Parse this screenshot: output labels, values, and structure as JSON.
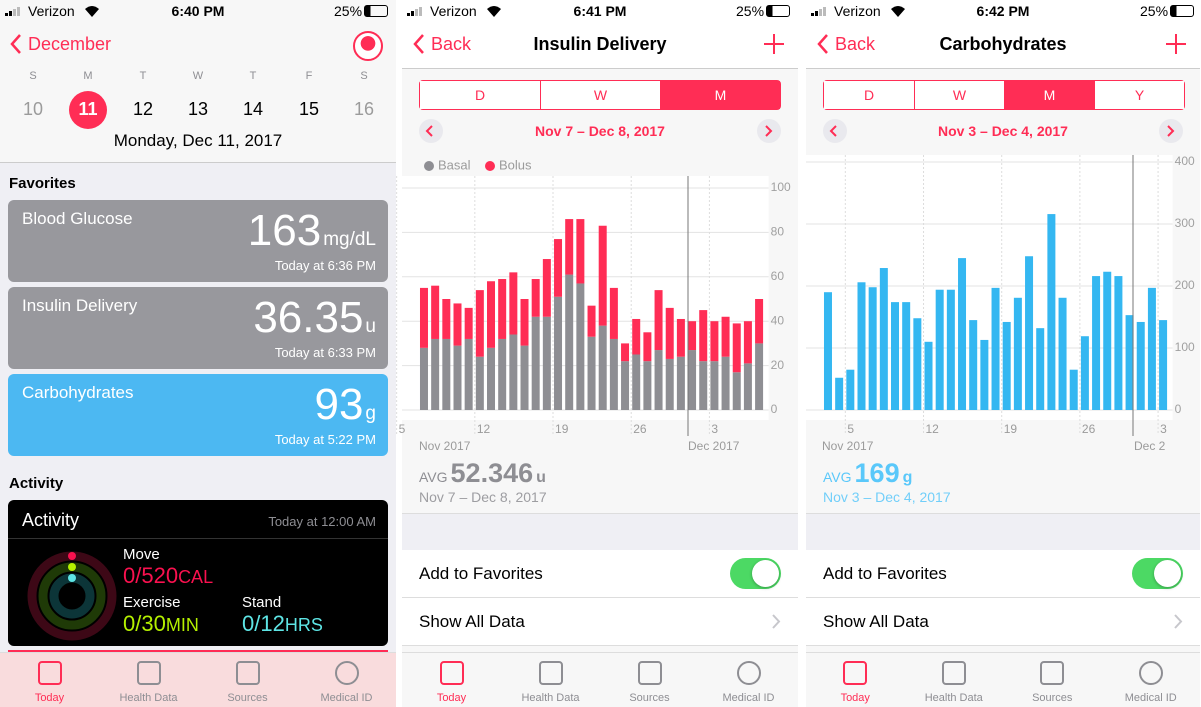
{
  "screens": [
    {
      "status": {
        "carrier": "Verizon",
        "time": "6:40 PM",
        "battery": "25%"
      },
      "back": "December",
      "weekdays": [
        "S",
        "M",
        "T",
        "W",
        "T",
        "F",
        "S"
      ],
      "dates": [
        "10",
        "11",
        "12",
        "13",
        "14",
        "15",
        "16"
      ],
      "selected_date_index": 1,
      "selected_date": "Monday, Dec 11, 2017",
      "favorites_heading": "Favorites",
      "favorites": [
        {
          "name": "Blood Glucose",
          "value": "163",
          "unit": "mg/dL",
          "time": "Today at 6:36 PM",
          "color": "#98989d"
        },
        {
          "name": "Insulin Delivery",
          "value": "36.35",
          "unit": "u",
          "time": "Today at 6:33 PM",
          "color": "#98989d"
        },
        {
          "name": "Carbohydrates",
          "value": "93",
          "unit": "g",
          "time": "Today at 5:22 PM",
          "color": "#4cb8f2"
        }
      ],
      "activity_heading": "Activity",
      "activity": {
        "title": "Activity",
        "time": "Today at 12:00 AM",
        "metrics": [
          {
            "label": "Move",
            "value": "0/520",
            "unit": "CAL",
            "color": "#fa114f"
          },
          {
            "label": "Exercise",
            "value": "0/30",
            "unit": "MIN",
            "color": "#b4f000"
          },
          {
            "label": "Stand",
            "value": "0/12",
            "unit": "HRS",
            "color": "#5ee5e5"
          }
        ]
      },
      "tabs": [
        "Today",
        "Health Data",
        "Sources",
        "Medical ID"
      ],
      "selected_tab": 0
    },
    {
      "status": {
        "carrier": "Verizon",
        "time": "6:41 PM",
        "battery": "25%"
      },
      "back": "Back",
      "title": "Insulin Delivery",
      "segments": [
        "D",
        "W",
        "M"
      ],
      "selected_segment": 2,
      "range": "Nov 7 – Dec 8, 2017",
      "chart": {
        "type": "bar",
        "stacked": true,
        "series": [
          {
            "name": "Basal",
            "color": "#8e8e93",
            "values": [
              28,
              32,
              32,
              29,
              32,
              24,
              28,
              32,
              34,
              29,
              42,
              42,
              51,
              61,
              57,
              33,
              38,
              32,
              22,
              25,
              22,
              27,
              23,
              24,
              27,
              22,
              22,
              24,
              17,
              21,
              30
            ]
          },
          {
            "name": "Bolus",
            "color": "#ff2d55",
            "values": [
              27,
              24,
              18,
              19,
              14,
              30,
              30,
              27,
              28,
              21,
              17,
              26,
              26,
              25,
              29,
              14,
              45,
              23,
              8,
              16,
              13,
              27,
              23,
              17,
              13,
              23,
              18,
              18,
              22,
              19,
              20
            ]
          }
        ],
        "ylim": [
          0,
          100
        ],
        "yticks": [
          0,
          20,
          40,
          60,
          80,
          100
        ],
        "day_labels": [
          "5",
          "12",
          "19",
          "26",
          "3"
        ],
        "month_labels": [
          "Nov 2017",
          "Dec 2017"
        ]
      },
      "average": {
        "label": "AVG",
        "value": "52.346",
        "unit": "u",
        "range": "Nov 7 – Dec 8, 2017",
        "color": "#8e8e93"
      },
      "rows": [
        {
          "label": "Add to Favorites",
          "toggle": true
        },
        {
          "label": "Show All Data"
        }
      ],
      "tabs": [
        "Today",
        "Health Data",
        "Sources",
        "Medical ID"
      ],
      "selected_tab": 0
    },
    {
      "status": {
        "carrier": "Verizon",
        "time": "6:42 PM",
        "battery": "25%"
      },
      "back": "Back",
      "title": "Carbohydrates",
      "segments": [
        "D",
        "W",
        "M",
        "Y"
      ],
      "selected_segment": 2,
      "range": "Nov 3 – Dec 4, 2017",
      "chart": {
        "type": "bar",
        "color": "#34b7f1",
        "values": [
          190,
          52,
          65,
          206,
          198,
          229,
          174,
          174,
          148,
          110,
          194,
          194,
          245,
          145,
          113,
          197,
          142,
          181,
          248,
          132,
          316,
          181,
          65,
          119,
          216,
          223,
          216,
          153,
          142,
          197,
          145
        ],
        "ylim": [
          0,
          400
        ],
        "yticks": [
          0,
          100,
          200,
          300,
          400
        ],
        "day_labels": [
          "5",
          "12",
          "19",
          "26",
          "3"
        ],
        "month_labels": [
          "Nov 2017",
          "Dec 2"
        ]
      },
      "average": {
        "label": "AVG",
        "value": "169",
        "unit": "g",
        "range": "Nov 3 – Dec 4, 2017",
        "color": "#5ac8fa"
      },
      "rows": [
        {
          "label": "Add to Favorites",
          "toggle": true
        },
        {
          "label": "Show All Data"
        }
      ],
      "tabs": [
        "Today",
        "Health Data",
        "Sources",
        "Medical ID"
      ],
      "selected_tab": 0
    }
  ]
}
